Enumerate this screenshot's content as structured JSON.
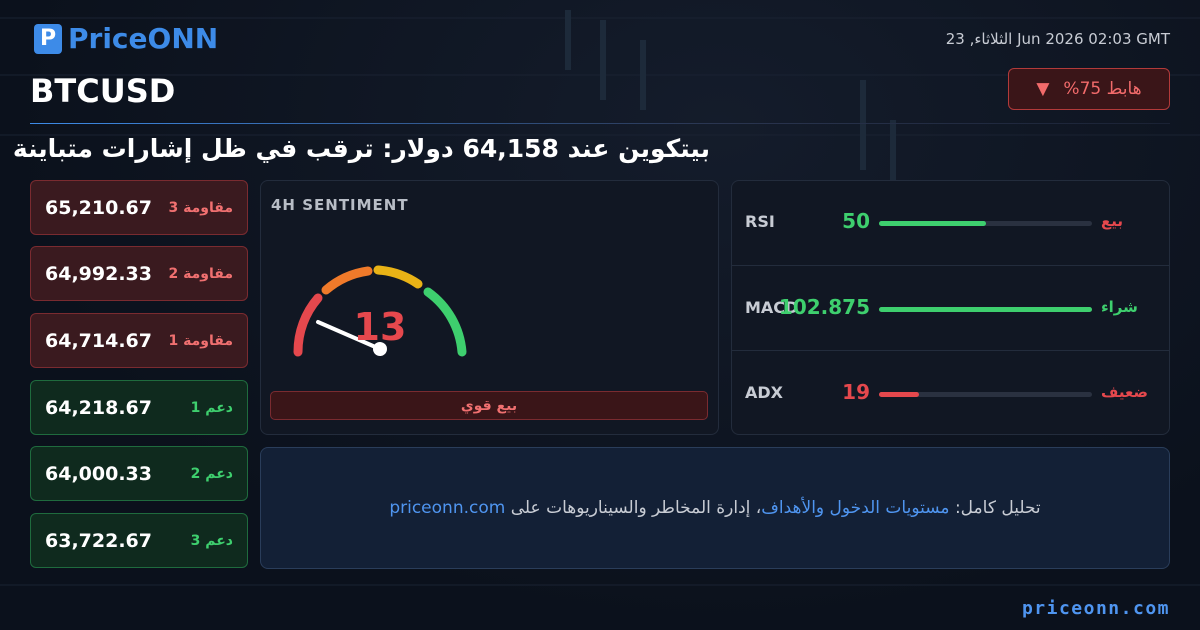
{
  "header": {
    "logo": "PriceONN",
    "date": "الثلاثاء, 23 Jun 2026 02:03 GMT",
    "symbol": "BTCUSD",
    "badge": "هابط 75%",
    "headline": "بيتكوين عند 64,158 دولار: ترقب في ظل إشارات متباينة"
  },
  "levels": [
    {
      "label": "مقاومة 3",
      "value": "65,210.67",
      "kind": "resistance"
    },
    {
      "label": "مقاومة 2",
      "value": "64,992.33",
      "kind": "resistance"
    },
    {
      "label": "مقاومة 1",
      "value": "64,714.67",
      "kind": "resistance"
    },
    {
      "label": "دعم 1",
      "value": "64,218.67",
      "kind": "support"
    },
    {
      "label": "دعم 2",
      "value": "64,000.33",
      "kind": "support"
    },
    {
      "label": "دعم 3",
      "value": "63,722.67",
      "kind": "support"
    }
  ],
  "sentiment": {
    "title": "4H SENTIMENT",
    "value": 13,
    "label": "بيع قوي"
  },
  "indicators": [
    {
      "name": "RSI",
      "value": 50,
      "signal": "بيع",
      "color": "#3ecf6e",
      "signal_color": "#e5484d"
    },
    {
      "name": "MACD",
      "value": 102.875,
      "signal": "شراء",
      "color": "#3ecf6e",
      "signal_color": "#3ecf6e"
    },
    {
      "name": "ADX",
      "value": 19,
      "signal": "ضعيف",
      "color": "#e5484d",
      "signal_color": "#e5484d"
    }
  ],
  "footer": {
    "prefix": "تحليل كامل:",
    "link": "مستويات الدخول والأهداف",
    "rest": "، إدارة المخاطر والسيناريوهات على",
    "domain": "priceonn.com",
    "site": "priceonn.com"
  }
}
